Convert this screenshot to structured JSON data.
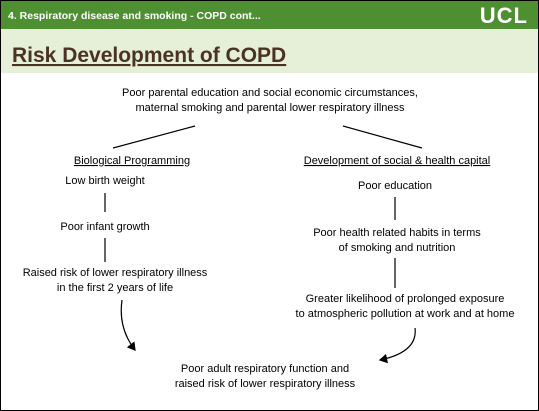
{
  "header": {
    "section": "4. Respiratory disease and smoking - COPD cont...",
    "logo": "UCL"
  },
  "title": "Risk Development of COPD",
  "nodes": [
    {
      "lines": [
        "Poor parental education and social economic circumstances,",
        "maternal smoking and parental lower respiratory illness"
      ]
    },
    {
      "lines": [
        "Biological Programming"
      ]
    },
    {
      "lines": [
        "Low birth weight"
      ]
    },
    {
      "lines": [
        "Poor infant growth"
      ]
    },
    {
      "lines": [
        "Raised risk of lower respiratory illness",
        "in the first 2 years of life"
      ]
    },
    {
      "lines": [
        "Development of social & health capital"
      ]
    },
    {
      "lines": [
        "Poor education"
      ]
    },
    {
      "lines": [
        "Poor health related habits in terms",
        "of smoking and nutrition"
      ]
    },
    {
      "lines": [
        "Greater likelihood of prolonged exposure",
        "to atmospheric pollution at work and at home"
      ]
    },
    {
      "lines": [
        "Poor adult respiratory function and",
        "raised risk of lower respiratory illness"
      ]
    }
  ]
}
